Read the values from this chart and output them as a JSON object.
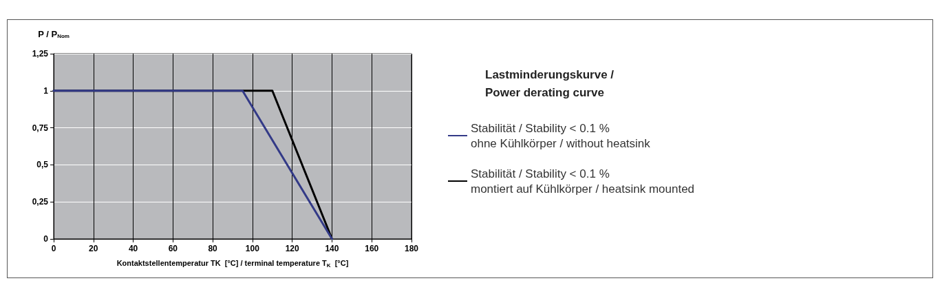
{
  "chart_data": {
    "type": "line",
    "xlabel": "Kontaktstellentemperatur TK  [°C] / terminal temperature T$_{K}$  [°C]",
    "ylabel": "P / P$_{Nom}$",
    "legend_title": "Lastminderungskurve /\nPower derating curve",
    "series": [
      {
        "name": "Stabilität / Stability < 0.1 %\nmontiert auf Kühlkörper / heatsink mounted",
        "color": "#000000",
        "x": [
          0,
          110,
          140
        ],
        "values": [
          1,
          1,
          0
        ]
      },
      {
        "name": "Stabilität / Stability < 0.1 %\nohne Kühlkörper / without heatsink",
        "color": "#333a87",
        "x": [
          0,
          95,
          140
        ],
        "values": [
          1,
          1,
          0
        ]
      }
    ],
    "xlim": [
      0,
      180
    ],
    "xticks": [
      0,
      20,
      40,
      60,
      80,
      100,
      120,
      140,
      160,
      180
    ],
    "ylim": [
      0,
      1.25
    ],
    "yticks": [
      0,
      {
        "value": 0.25,
        "label": "0,25"
      },
      {
        "value": 0.5,
        "label": "0,5"
      },
      {
        "value": 0.75,
        "label": "0,75"
      },
      1,
      {
        "value": 1.25,
        "label": "1,25"
      }
    ],
    "grid": true,
    "legend": "right",
    "marker": "none",
    "line_style": "solid"
  }
}
